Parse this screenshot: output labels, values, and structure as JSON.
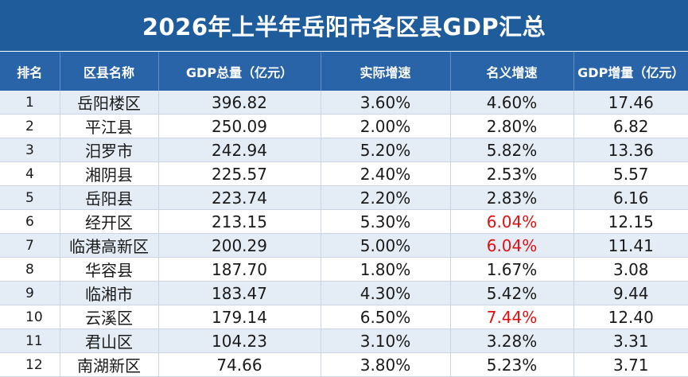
{
  "title": "2026年上半年岳阳市各区县GDP汇总",
  "colors": {
    "header_bg": "#2a64a8",
    "title_bg": "#1f5c9c",
    "highlight_red": "#e01010",
    "stripe": "#e4edf6"
  },
  "headers": [
    "排名",
    "区县名称",
    "GDP总量（亿元）",
    "实际增速",
    "名义增速",
    "GDP增量（亿元）"
  ],
  "rows": [
    {
      "rank": "1",
      "name": "岳阳楼区",
      "gdp": "396.82",
      "real": "3.60%",
      "nominal": "4.60%",
      "nominal_red": false,
      "increase": "17.46"
    },
    {
      "rank": "2",
      "name": "平江县",
      "gdp": "250.09",
      "real": "2.00%",
      "nominal": "2.80%",
      "nominal_red": false,
      "increase": "6.82"
    },
    {
      "rank": "3",
      "name": "汨罗市",
      "gdp": "242.94",
      "real": "5.20%",
      "nominal": "5.82%",
      "nominal_red": false,
      "increase": "13.36"
    },
    {
      "rank": "4",
      "name": "湘阴县",
      "gdp": "225.57",
      "real": "2.40%",
      "nominal": "2.53%",
      "nominal_red": false,
      "increase": "5.57"
    },
    {
      "rank": "5",
      "name": "岳阳县",
      "gdp": "223.74",
      "real": "2.20%",
      "nominal": "2.83%",
      "nominal_red": false,
      "increase": "6.16"
    },
    {
      "rank": "6",
      "name": "经开区",
      "gdp": "213.15",
      "real": "5.30%",
      "nominal": "6.04%",
      "nominal_red": true,
      "increase": "12.15"
    },
    {
      "rank": "7",
      "name": "临港高新区",
      "gdp": "200.29",
      "real": "5.00%",
      "nominal": "6.04%",
      "nominal_red": true,
      "increase": "11.41"
    },
    {
      "rank": "8",
      "name": "华容县",
      "gdp": "187.70",
      "real": "1.80%",
      "nominal": "1.67%",
      "nominal_red": false,
      "increase": "3.08"
    },
    {
      "rank": "9",
      "name": "临湘市",
      "gdp": "183.47",
      "real": "4.30%",
      "nominal": "5.42%",
      "nominal_red": false,
      "increase": "9.44"
    },
    {
      "rank": "10",
      "name": "云溪区",
      "gdp": "179.14",
      "real": "6.50%",
      "nominal": "7.44%",
      "nominal_red": true,
      "increase": "12.40"
    },
    {
      "rank": "11",
      "name": "君山区",
      "gdp": "104.23",
      "real": "3.10%",
      "nominal": "3.28%",
      "nominal_red": false,
      "increase": "3.31"
    },
    {
      "rank": "12",
      "name": "南湖新区",
      "gdp": "74.66",
      "real": "3.80%",
      "nominal": "5.23%",
      "nominal_red": false,
      "increase": "3.71"
    }
  ]
}
